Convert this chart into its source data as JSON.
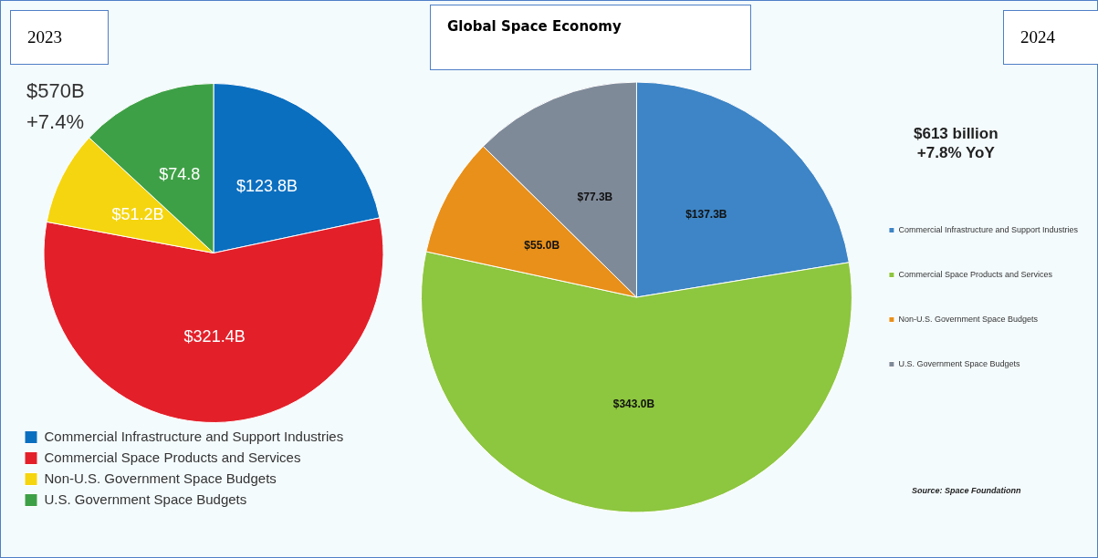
{
  "chart_data": [
    {
      "type": "pie",
      "title": "2023",
      "annotations": [
        "$570B",
        "+7.4%"
      ],
      "categories": [
        "Commercial Infrastructure and Support Industries",
        "Commercial Space Products and Services",
        "Non-U.S. Government Space Budgets",
        "U.S. Government Space Budgets"
      ],
      "values": [
        123.8,
        321.4,
        51.2,
        74.8
      ],
      "value_labels": [
        "$123.8B",
        "$321.4B",
        "$51.2B",
        "$74.8"
      ],
      "colors": [
        "#0b6fc0",
        "#e3202a",
        "#f5d50f",
        "#3ea046"
      ],
      "legend": "bottom"
    },
    {
      "type": "pie",
      "title": "2024",
      "subtitle": "Global Space Economy",
      "annotations": [
        "$613 billion",
        "+7.8% YoY",
        "Source: Space Foundationn"
      ],
      "categories": [
        "Commercial Infrastructure and Support Industries",
        "Commercial Space Products and Services",
        "Non-U.S. Government Space Budgets",
        "U.S. Government Space Budgets"
      ],
      "values": [
        137.3,
        343.0,
        55.0,
        77.3
      ],
      "value_labels": [
        "$137.3B",
        "$343.0B",
        "$55.0B",
        "$77.3B"
      ],
      "colors": [
        "#3d85c6",
        "#8dc63f",
        "#e8901a",
        "#7f8a99"
      ],
      "legend": "right"
    }
  ]
}
